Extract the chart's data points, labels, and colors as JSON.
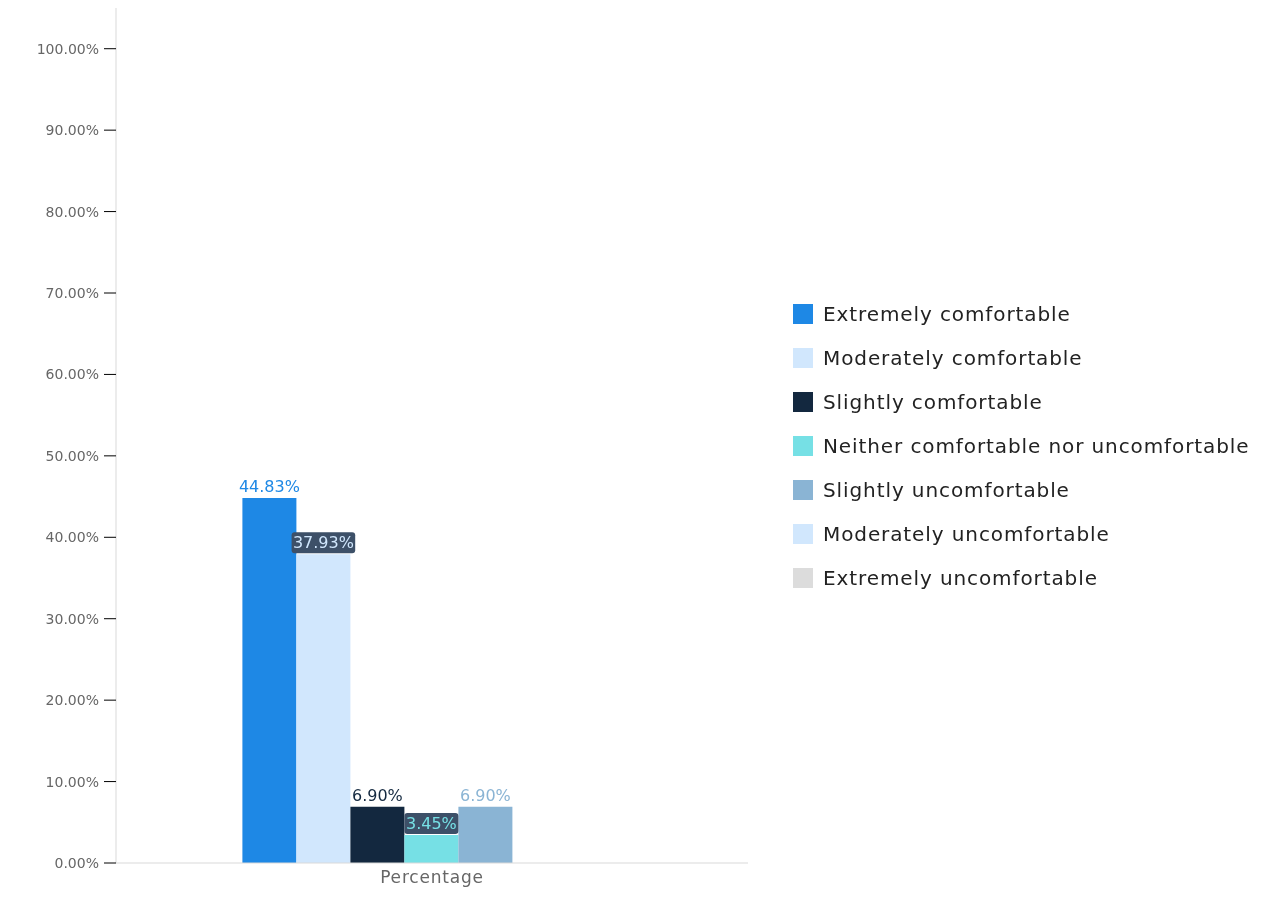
{
  "chart_data": {
    "type": "bar",
    "categories": [
      "Percentage"
    ],
    "series": [
      {
        "name": "Extremely comfortable",
        "color": "#1e88e5",
        "values": [
          44.83
        ],
        "value_labels": [
          "44.83%"
        ]
      },
      {
        "name": "Moderately comfortable",
        "color": "#d1e7fd",
        "values": [
          37.93
        ],
        "value_labels": [
          "37.93%"
        ]
      },
      {
        "name": "Slightly comfortable",
        "color": "#13283f",
        "values": [
          6.9
        ],
        "value_labels": [
          "6.90%"
        ]
      },
      {
        "name": "Neither comfortable nor uncomfortable",
        "color": "#76e0e5",
        "values": [
          3.45
        ],
        "value_labels": [
          "3.45%"
        ]
      },
      {
        "name": "Slightly uncomfortable",
        "color": "#8ab4d4",
        "values": [
          6.9
        ],
        "value_labels": [
          "6.90%"
        ]
      },
      {
        "name": "Moderately uncomfortable",
        "color": "#d1e7fd",
        "values": [
          0
        ],
        "value_labels": [
          null
        ]
      },
      {
        "name": "Extremely uncomfortable",
        "color": "#dcdcdc",
        "values": [
          0
        ],
        "value_labels": [
          null
        ]
      }
    ],
    "ylim": [
      0,
      105
    ],
    "yticks": [
      {
        "value": 0,
        "label": "0.00%"
      },
      {
        "value": 10,
        "label": "10.00%"
      },
      {
        "value": 20,
        "label": "20.00%"
      },
      {
        "value": 30,
        "label": "30.00%"
      },
      {
        "value": 40,
        "label": "40.00%"
      },
      {
        "value": 50,
        "label": "50.00%"
      },
      {
        "value": 60,
        "label": "60.00%"
      },
      {
        "value": 70,
        "label": "70.00%"
      },
      {
        "value": 80,
        "label": "80.00%"
      },
      {
        "value": 90,
        "label": "90.00%"
      },
      {
        "value": 100,
        "label": "100.00%"
      }
    ],
    "legend": "right"
  }
}
